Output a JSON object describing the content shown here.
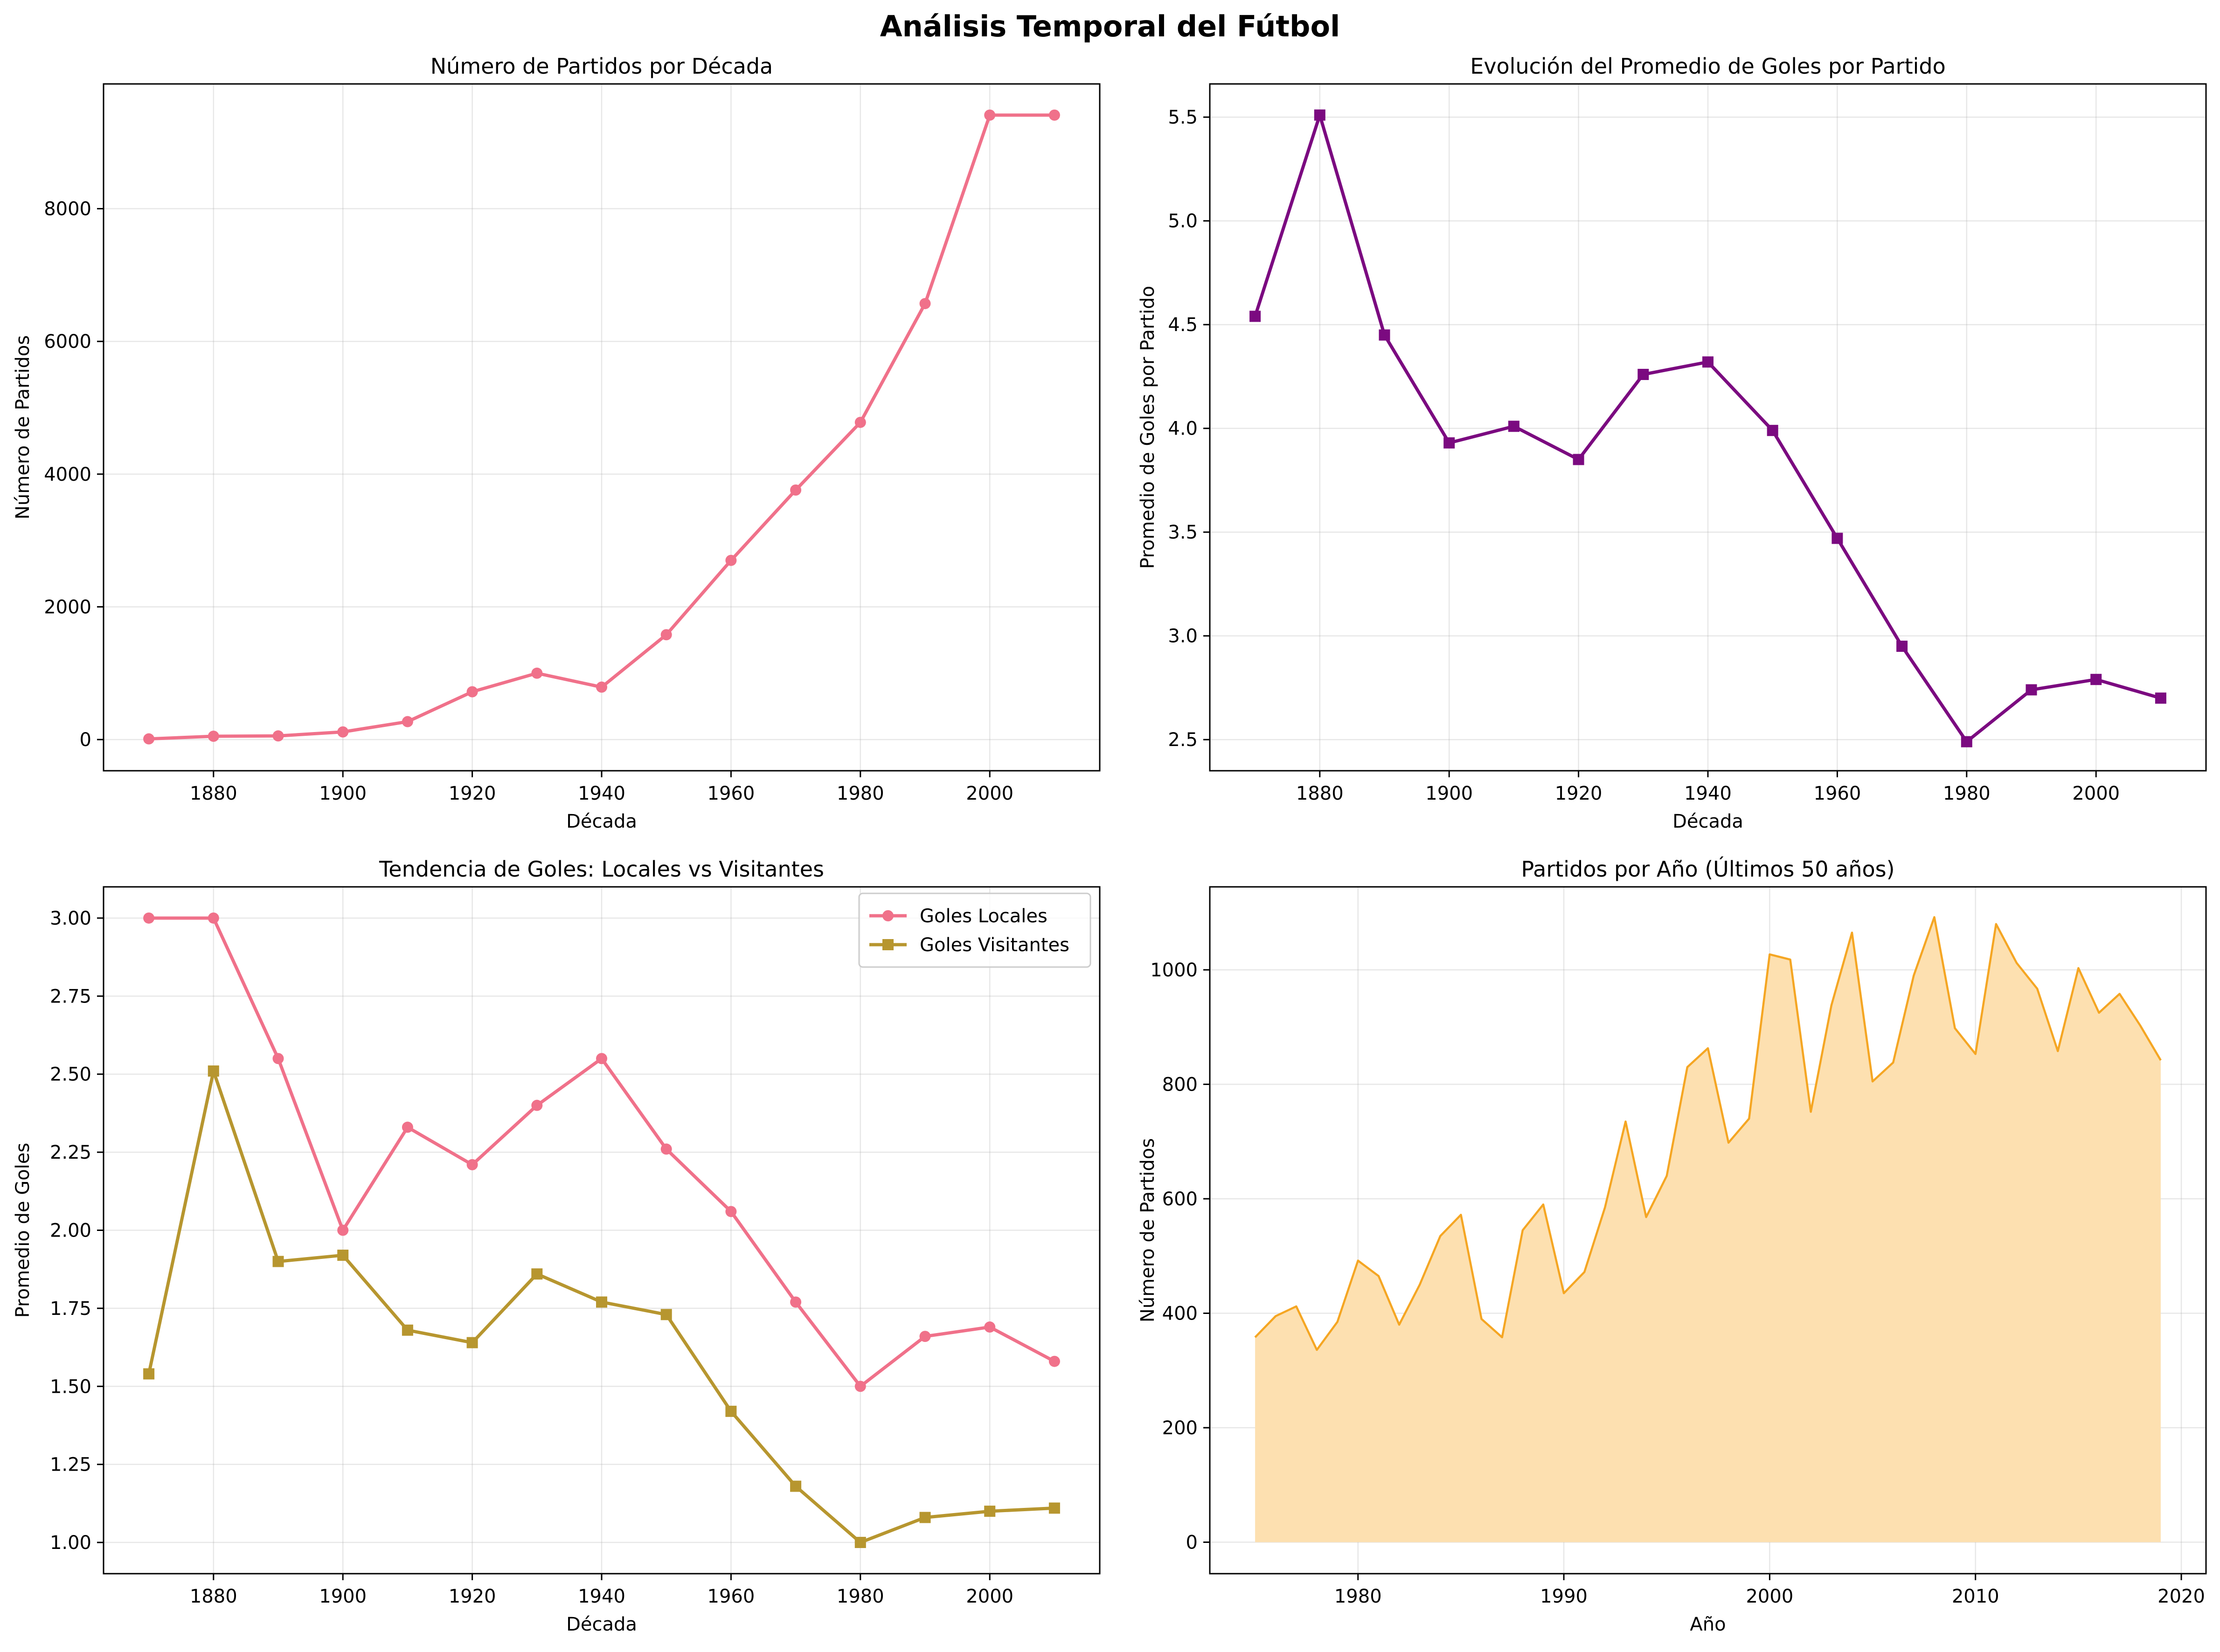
{
  "figure": {
    "suptitle": "Análisis Temporal del Fútbol"
  },
  "chart_data": [
    {
      "type": "line",
      "title": "Número de Partidos por Década",
      "xlabel": "Década",
      "ylabel": "Número de Partidos",
      "x": [
        1870,
        1880,
        1890,
        1900,
        1910,
        1920,
        1930,
        1940,
        1950,
        1960,
        1970,
        1980,
        1990,
        2000,
        2010
      ],
      "series": [
        {
          "color": "#f0718a",
          "marker": "circle",
          "values": [
            10,
            50,
            55,
            115,
            270,
            720,
            1000,
            790,
            1580,
            2700,
            3760,
            4780,
            6570,
            9410,
            9410
          ]
        }
      ],
      "xlim": [
        1863,
        2017
      ],
      "ylim": [
        -470,
        9880
      ],
      "xticks": [
        1880,
        1900,
        1920,
        1940,
        1960,
        1980,
        2000
      ],
      "yticks": [
        0,
        2000,
        4000,
        6000,
        8000
      ],
      "grid": true
    },
    {
      "type": "line",
      "title": "Evolución del Promedio de Goles por Partido",
      "xlabel": "Década",
      "ylabel": "Promedio de Goles por Partido",
      "x": [
        1870,
        1880,
        1890,
        1900,
        1910,
        1920,
        1930,
        1940,
        1950,
        1960,
        1970,
        1980,
        1990,
        2000,
        2010
      ],
      "series": [
        {
          "color": "#7b0a80",
          "marker": "square",
          "values": [
            4.54,
            5.51,
            4.45,
            3.93,
            4.01,
            3.85,
            4.26,
            4.32,
            3.99,
            3.47,
            2.95,
            2.49,
            2.74,
            2.79,
            2.7
          ]
        }
      ],
      "xlim": [
        1863,
        2017
      ],
      "ylim": [
        2.35,
        5.66
      ],
      "xticks": [
        1880,
        1900,
        1920,
        1940,
        1960,
        1980,
        2000
      ],
      "yticks": [
        2.5,
        3.0,
        3.5,
        4.0,
        4.5,
        5.0,
        5.5
      ],
      "yticklabels": [
        "2.5",
        "3.0",
        "3.5",
        "4.0",
        "4.5",
        "5.0",
        "5.5"
      ],
      "grid": true
    },
    {
      "type": "line",
      "title": "Tendencia de Goles: Locales vs Visitantes",
      "xlabel": "Década",
      "ylabel": "Promedio de Goles",
      "x": [
        1870,
        1880,
        1890,
        1900,
        1910,
        1920,
        1930,
        1940,
        1950,
        1960,
        1970,
        1980,
        1990,
        2000,
        2010
      ],
      "series": [
        {
          "name": "Goles Locales",
          "color": "#f0718a",
          "marker": "circle",
          "values": [
            3.0,
            3.0,
            2.55,
            2.0,
            2.33,
            2.21,
            2.4,
            2.55,
            2.26,
            2.06,
            1.77,
            1.5,
            1.66,
            1.69,
            1.58
          ]
        },
        {
          "name": "Goles Visitantes",
          "color": "#b7962f",
          "marker": "square",
          "values": [
            1.54,
            2.51,
            1.9,
            1.92,
            1.68,
            1.64,
            1.86,
            1.77,
            1.73,
            1.42,
            1.18,
            1.0,
            1.08,
            1.1,
            1.11
          ]
        }
      ],
      "xlim": [
        1863,
        2017
      ],
      "ylim": [
        0.9,
        3.1
      ],
      "xticks": [
        1880,
        1900,
        1920,
        1940,
        1960,
        1980,
        2000
      ],
      "yticks": [
        1.0,
        1.25,
        1.5,
        1.75,
        2.0,
        2.25,
        2.5,
        2.75,
        3.0
      ],
      "yticklabels": [
        "1.00",
        "1.25",
        "1.50",
        "1.75",
        "2.00",
        "2.25",
        "2.50",
        "2.75",
        "3.00"
      ],
      "legend": "top-right",
      "grid": true
    },
    {
      "type": "area",
      "title": "Partidos por Año (Últimos 50 años)",
      "xlabel": "Año",
      "ylabel": "Número de Partidos",
      "x": [
        1975,
        1976,
        1977,
        1978,
        1979,
        1980,
        1981,
        1982,
        1983,
        1984,
        1985,
        1986,
        1987,
        1988,
        1989,
        1990,
        1991,
        1992,
        1993,
        1994,
        1995,
        1996,
        1997,
        1998,
        1999,
        2000,
        2001,
        2002,
        2003,
        2004,
        2005,
        2006,
        2007,
        2008,
        2009,
        2010,
        2011,
        2012,
        2013,
        2014,
        2015,
        2016,
        2017,
        2018,
        2019
      ],
      "series": [
        {
          "color": "#f5a623",
          "fill": "#fde0b0",
          "values": [
            358,
            395,
            412,
            336,
            385,
            492,
            465,
            380,
            450,
            535,
            572,
            390,
            358,
            545,
            590,
            435,
            472,
            585,
            735,
            568,
            640,
            830,
            863,
            698,
            740,
            1027,
            1018,
            752,
            938,
            1065,
            805,
            838,
            990,
            1092,
            898,
            853,
            1080,
            1012,
            967,
            858,
            1003,
            925,
            958,
            903,
            842
          ]
        }
      ],
      "xlim": [
        1972.8,
        2021.2
      ],
      "ylim": [
        -55,
        1145
      ],
      "xticks": [
        1980,
        1990,
        2000,
        2010,
        2020
      ],
      "yticks": [
        0,
        200,
        400,
        600,
        800,
        1000
      ],
      "grid": true
    }
  ]
}
